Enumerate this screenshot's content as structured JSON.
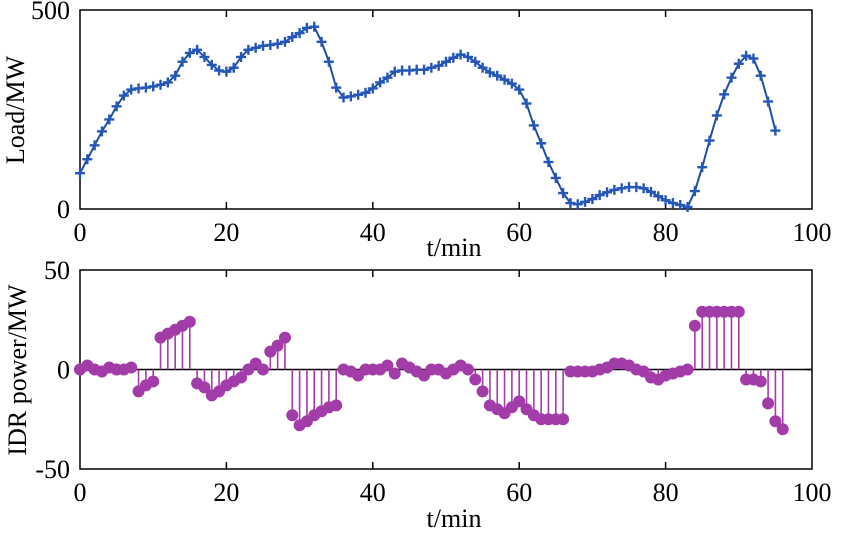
{
  "chart_data": [
    {
      "type": "line",
      "title": "",
      "xlabel": "t/min",
      "ylabel": "Load/MW",
      "xlim": [
        0,
        100
      ],
      "ylim": [
        0,
        500
      ],
      "xticks": [
        "0",
        "20",
        "40",
        "60",
        "80",
        "100"
      ],
      "yticks": [
        "0",
        "500"
      ],
      "grid": false,
      "marker": "plus",
      "color": "#2457b8",
      "series": [
        {
          "name": "Load",
          "values": [
            90,
            125,
            160,
            195,
            225,
            258,
            285,
            300,
            303,
            305,
            308,
            312,
            318,
            335,
            370,
            392,
            400,
            382,
            362,
            348,
            345,
            355,
            382,
            400,
            405,
            410,
            412,
            415,
            420,
            432,
            442,
            455,
            458,
            420,
            370,
            305,
            280,
            283,
            287,
            292,
            303,
            318,
            330,
            345,
            348,
            348,
            350,
            350,
            355,
            360,
            370,
            380,
            388,
            382,
            370,
            355,
            343,
            335,
            325,
            315,
            300,
            265,
            210,
            165,
            118,
            78,
            40,
            15,
            12,
            18,
            25,
            35,
            42,
            48,
            52,
            55,
            55,
            52,
            43,
            32,
            22,
            15,
            10,
            5,
            45,
            105,
            172,
            235,
            288,
            330,
            365,
            385,
            378,
            335,
            270,
            197
          ]
        }
      ]
    },
    {
      "type": "stem",
      "title": "",
      "xlabel": "t/min",
      "ylabel": "IDR power/MW",
      "xlim": [
        0,
        100
      ],
      "ylim": [
        -50,
        50
      ],
      "xticks": [
        "0",
        "20",
        "40",
        "60",
        "80",
        "100"
      ],
      "yticks": [
        "50",
        "0",
        "-50"
      ],
      "grid": false,
      "marker": "circle",
      "color": "#a23ca8",
      "series": [
        {
          "name": "IDR power",
          "values": [
            0,
            2,
            0,
            -1,
            1,
            0,
            0,
            1,
            -11,
            -8,
            -6,
            16,
            18,
            20,
            22,
            24,
            -7,
            -9,
            -13,
            -11,
            -8,
            -6,
            -4,
            0,
            3,
            0,
            9,
            12,
            16,
            -23,
            -28,
            -26,
            -23,
            -21,
            -19,
            -18,
            0,
            -1,
            -3,
            0,
            0,
            0,
            2,
            -2,
            3,
            1,
            -1,
            -3,
            0,
            0,
            -2,
            0,
            2,
            0,
            -5,
            -11,
            -18,
            -20,
            -22,
            -19,
            -16,
            -20,
            -23,
            -25,
            -25,
            -25,
            -25,
            -1,
            -1,
            -1,
            -1,
            0,
            1,
            3,
            3,
            2,
            0,
            -1,
            -4,
            -5,
            -3,
            -2,
            -1,
            0,
            22,
            29,
            29,
            29,
            29,
            29,
            29,
            -5,
            -5,
            -6,
            -17,
            -26,
            -30
          ]
        }
      ]
    }
  ]
}
